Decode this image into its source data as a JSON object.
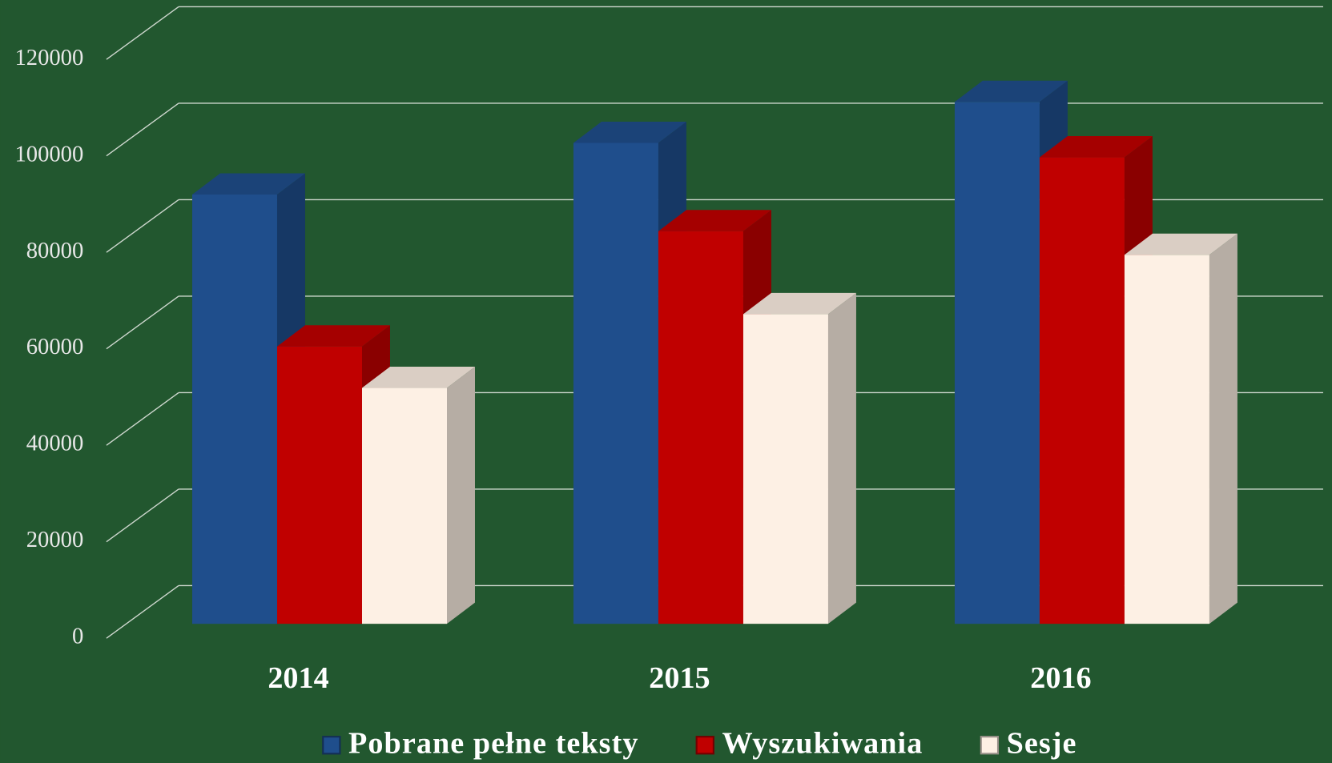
{
  "chart_data": {
    "type": "bar",
    "categories": [
      "2014",
      "2015",
      "2016"
    ],
    "series": [
      {
        "name": "Pobrane pełne teksty",
        "color": "#1f4e8c",
        "values": [
          89000,
          99700,
          108200
        ]
      },
      {
        "name": "Wyszukiwania",
        "color": "#c00000",
        "values": [
          57500,
          81400,
          96700
        ]
      },
      {
        "name": "Sesje",
        "color": "#fdf0e4",
        "values": [
          48900,
          64200,
          76500
        ]
      }
    ],
    "ylim": [
      0,
      120000
    ],
    "yticks": [
      0,
      20000,
      40000,
      60000,
      80000,
      100000,
      120000
    ],
    "grid": true
  }
}
